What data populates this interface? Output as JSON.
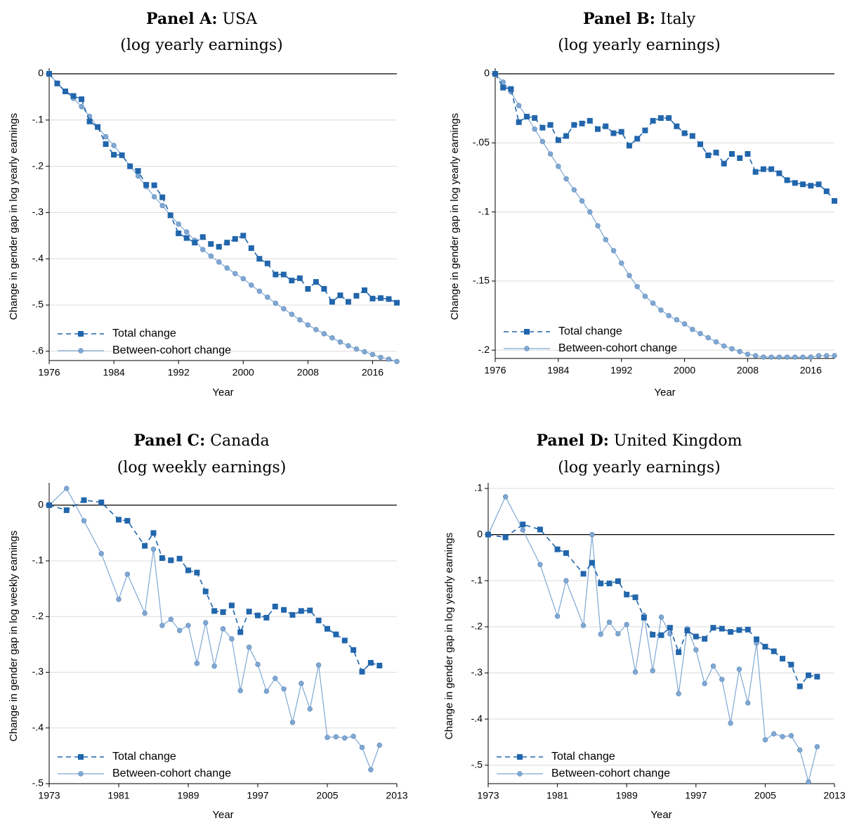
{
  "chart_data": [
    {
      "type": "line",
      "title_bold": "Panel A:",
      "title": "USA",
      "subtitle": "(log yearly earnings)",
      "xlabel": "Year",
      "ylabel": "Change in gender gap in log yearly earnings",
      "xlim": [
        1976,
        2019
      ],
      "ylim": [
        -0.62,
        0
      ],
      "xticks": [
        1976,
        1984,
        1992,
        2000,
        2008,
        2016
      ],
      "yticks": [
        0,
        -0.1,
        -0.2,
        -0.3,
        -0.4,
        -0.5,
        -0.6
      ],
      "ytick_labels": [
        "0",
        "-.1",
        "-.2",
        "-.3",
        "-.4",
        "-.5",
        "-.6"
      ],
      "grid": true,
      "legend_position": "bottom-left",
      "x": [
        1976,
        1977,
        1978,
        1979,
        1980,
        1981,
        1982,
        1983,
        1984,
        1985,
        1986,
        1987,
        1988,
        1989,
        1990,
        1991,
        1992,
        1993,
        1994,
        1995,
        1996,
        1997,
        1998,
        1999,
        2000,
        2001,
        2002,
        2003,
        2004,
        2005,
        2006,
        2007,
        2008,
        2009,
        2010,
        2011,
        2012,
        2013,
        2014,
        2015,
        2016,
        2017,
        2018,
        2019
      ],
      "series": [
        {
          "name": "Total change",
          "style": "dashed-square",
          "color": "#2166ac",
          "values": [
            0,
            -0.021,
            -0.038,
            -0.048,
            -0.055,
            -0.103,
            -0.115,
            -0.152,
            -0.175,
            -0.176,
            -0.2,
            -0.21,
            -0.24,
            -0.241,
            -0.267,
            -0.306,
            -0.345,
            -0.355,
            -0.365,
            -0.353,
            -0.368,
            -0.374,
            -0.365,
            -0.357,
            -0.35,
            -0.377,
            -0.4,
            -0.41,
            -0.434,
            -0.434,
            -0.447,
            -0.442,
            -0.465,
            -0.45,
            -0.465,
            -0.493,
            -0.479,
            -0.493,
            -0.48,
            -0.468,
            -0.486,
            -0.485,
            -0.487,
            -0.495
          ]
        },
        {
          "name": "Between-cohort change",
          "style": "solid-circle",
          "color": "#7fa8d3",
          "values": [
            0,
            -0.02,
            -0.038,
            -0.053,
            -0.071,
            -0.092,
            -0.115,
            -0.136,
            -0.155,
            -0.176,
            -0.199,
            -0.221,
            -0.244,
            -0.266,
            -0.285,
            -0.306,
            -0.325,
            -0.342,
            -0.36,
            -0.38,
            -0.394,
            -0.407,
            -0.42,
            -0.432,
            -0.443,
            -0.457,
            -0.47,
            -0.483,
            -0.496,
            -0.508,
            -0.52,
            -0.532,
            -0.543,
            -0.553,
            -0.562,
            -0.571,
            -0.58,
            -0.588,
            -0.595,
            -0.601,
            -0.607,
            -0.613,
            -0.617,
            -0.622
          ]
        }
      ]
    },
    {
      "type": "line",
      "title_bold": "Panel B:",
      "title": "Italy",
      "subtitle": "(log yearly earnings)",
      "xlabel": "Year",
      "ylabel": "Change in gender gap in log yearly earnings",
      "xlim": [
        1976,
        2019
      ],
      "ylim": [
        -0.206,
        0
      ],
      "xticks": [
        1976,
        1984,
        1992,
        2000,
        2008,
        2016
      ],
      "yticks": [
        0,
        -0.05,
        -0.1,
        -0.15,
        -0.2
      ],
      "ytick_labels": [
        "0",
        "-.05",
        "-.1",
        "-.15",
        "-.2"
      ],
      "grid": true,
      "legend_position": "bottom-left",
      "x": [
        1976,
        1977,
        1978,
        1979,
        1980,
        1981,
        1982,
        1983,
        1984,
        1985,
        1986,
        1987,
        1988,
        1989,
        1990,
        1991,
        1992,
        1993,
        1994,
        1995,
        1996,
        1997,
        1998,
        1999,
        2000,
        2001,
        2002,
        2003,
        2004,
        2005,
        2006,
        2007,
        2008,
        2009,
        2010,
        2011,
        2012,
        2013,
        2014,
        2015,
        2016,
        2017,
        2018,
        2019
      ],
      "series": [
        {
          "name": "Total change",
          "style": "dashed-square",
          "color": "#2166ac",
          "values": [
            0,
            -0.01,
            -0.011,
            -0.035,
            -0.031,
            -0.032,
            -0.039,
            -0.037,
            -0.048,
            -0.045,
            -0.037,
            -0.036,
            -0.034,
            -0.04,
            -0.038,
            -0.043,
            -0.042,
            -0.052,
            -0.047,
            -0.041,
            -0.034,
            -0.032,
            -0.032,
            -0.038,
            -0.043,
            -0.045,
            -0.051,
            -0.059,
            -0.057,
            -0.065,
            -0.058,
            -0.061,
            -0.058,
            -0.071,
            -0.069,
            -0.069,
            -0.072,
            -0.077,
            -0.079,
            -0.08,
            -0.081,
            -0.08,
            -0.085,
            -0.092
          ]
        },
        {
          "name": "Between-cohort change",
          "style": "solid-circle",
          "color": "#7fa8d3",
          "values": [
            0,
            -0.006,
            -0.013,
            -0.023,
            -0.031,
            -0.04,
            -0.049,
            -0.058,
            -0.067,
            -0.076,
            -0.084,
            -0.092,
            -0.1,
            -0.11,
            -0.12,
            -0.128,
            -0.137,
            -0.146,
            -0.154,
            -0.161,
            -0.166,
            -0.171,
            -0.175,
            -0.178,
            -0.181,
            -0.185,
            -0.188,
            -0.191,
            -0.194,
            -0.197,
            -0.199,
            -0.201,
            -0.203,
            -0.204,
            -0.205,
            -0.205,
            -0.205,
            -0.205,
            -0.205,
            -0.205,
            -0.205,
            -0.204,
            -0.204,
            -0.204
          ]
        }
      ]
    },
    {
      "type": "line",
      "title_bold": "Panel C:",
      "title": "Canada",
      "subtitle": "(log weekly earnings)",
      "xlabel": "Year",
      "ylabel": "Change in gender gap in log weekly earnings",
      "xlim": [
        1973,
        2013
      ],
      "ylim": [
        -0.5,
        0.03
      ],
      "xticks": [
        1973,
        1981,
        1989,
        1997,
        2005,
        2013
      ],
      "yticks": [
        0,
        -0.1,
        -0.2,
        -0.3,
        -0.4,
        -0.5
      ],
      "ytick_labels": [
        "0",
        "-.1",
        "-.2",
        "-.3",
        "-.4",
        "-.5"
      ],
      "grid": true,
      "legend_position": "bottom-left",
      "series": [
        {
          "name": "Total change",
          "style": "dashed-square",
          "color": "#2166ac",
          "x": [
            1973,
            1975,
            1977,
            1979,
            1981,
            1982,
            1984,
            1985,
            1986,
            1987,
            1988,
            1989,
            1990,
            1991,
            1992,
            1993,
            1994,
            1995,
            1996,
            1997,
            1998,
            1999,
            2000,
            2001,
            2002,
            2003,
            2004,
            2005,
            2006,
            2007,
            2008,
            2009,
            2010,
            2011
          ],
          "values": [
            0,
            -0.009,
            0.009,
            0.005,
            -0.026,
            -0.028,
            -0.073,
            -0.05,
            -0.095,
            -0.099,
            -0.096,
            -0.117,
            -0.121,
            -0.155,
            -0.19,
            -0.192,
            -0.18,
            -0.228,
            -0.191,
            -0.198,
            -0.202,
            -0.182,
            -0.188,
            -0.197,
            -0.19,
            -0.189,
            -0.207,
            -0.222,
            -0.232,
            -0.243,
            -0.26,
            -0.299,
            -0.283,
            -0.288
          ]
        },
        {
          "name": "Between-cohort change",
          "style": "solid-circle",
          "color": "#7fa8d3",
          "x": [
            1973,
            1975,
            1977,
            1979,
            1981,
            1982,
            1984,
            1985,
            1986,
            1987,
            1988,
            1989,
            1990,
            1991,
            1992,
            1993,
            1994,
            1995,
            1996,
            1997,
            1998,
            1999,
            2000,
            2001,
            2002,
            2003,
            2004,
            2005,
            2006,
            2007,
            2008,
            2009,
            2010,
            2011
          ],
          "values": [
            0,
            0.03,
            -0.028,
            -0.087,
            -0.169,
            -0.124,
            -0.194,
            -0.079,
            -0.216,
            -0.205,
            -0.225,
            -0.216,
            -0.284,
            -0.211,
            -0.289,
            -0.222,
            -0.24,
            -0.333,
            -0.255,
            -0.286,
            -0.334,
            -0.311,
            -0.33,
            -0.39,
            -0.32,
            -0.366,
            -0.287,
            -0.417,
            -0.416,
            -0.418,
            -0.415,
            -0.435,
            -0.475,
            -0.431
          ]
        }
      ]
    },
    {
      "type": "line",
      "title_bold": "Panel D:",
      "title": "United Kingdom",
      "subtitle": "(log yearly earnings)",
      "xlabel": "Year",
      "ylabel": "Change in gender gap in log yearly earnings",
      "xlim": [
        1973,
        2013
      ],
      "ylim": [
        -0.54,
        0.1
      ],
      "xticks": [
        1973,
        1981,
        1989,
        1997,
        2005,
        2013
      ],
      "yticks": [
        0.1,
        0,
        -0.1,
        -0.2,
        -0.3,
        -0.4,
        -0.5
      ],
      "ytick_labels": [
        ".1",
        "0",
        "-.1",
        "-.2",
        "-.3",
        "-.4",
        "-.5"
      ],
      "grid": true,
      "legend_position": "bottom-left",
      "series": [
        {
          "name": "Total change",
          "style": "dashed-square",
          "color": "#2166ac",
          "x": [
            1973,
            1975,
            1977,
            1979,
            1981,
            1982,
            1984,
            1985,
            1986,
            1987,
            1988,
            1989,
            1990,
            1991,
            1992,
            1993,
            1994,
            1995,
            1996,
            1997,
            1998,
            1999,
            2000,
            2001,
            2002,
            2003,
            2004,
            2005,
            2006,
            2007,
            2008,
            2009,
            2010,
            2011
          ],
          "values": [
            0,
            -0.006,
            0.022,
            0.011,
            -0.032,
            -0.04,
            -0.085,
            -0.061,
            -0.106,
            -0.106,
            -0.101,
            -0.13,
            -0.136,
            -0.18,
            -0.217,
            -0.218,
            -0.202,
            -0.255,
            -0.208,
            -0.221,
            -0.226,
            -0.202,
            -0.204,
            -0.211,
            -0.207,
            -0.206,
            -0.227,
            -0.243,
            -0.253,
            -0.269,
            -0.282,
            -0.329,
            -0.305,
            -0.308
          ]
        },
        {
          "name": "Between-cohort change",
          "style": "solid-circle",
          "color": "#7fa8d3",
          "x": [
            1973,
            1975,
            1977,
            1979,
            1981,
            1982,
            1984,
            1985,
            1986,
            1987,
            1988,
            1989,
            1990,
            1991,
            1992,
            1993,
            1994,
            1995,
            1996,
            1997,
            1998,
            1999,
            2000,
            2001,
            2002,
            2003,
            2004,
            2005,
            2006,
            2007,
            2008,
            2009,
            2010,
            2011
          ],
          "values": [
            0,
            0.082,
            0.01,
            -0.065,
            -0.177,
            -0.1,
            -0.197,
            0,
            -0.216,
            -0.19,
            -0.215,
            -0.195,
            -0.298,
            -0.175,
            -0.295,
            -0.179,
            -0.215,
            -0.345,
            -0.204,
            -0.25,
            -0.323,
            -0.285,
            -0.314,
            -0.409,
            -0.292,
            -0.365,
            -0.235,
            -0.445,
            -0.432,
            -0.438,
            -0.436,
            -0.467,
            -0.536,
            -0.46
          ]
        }
      ]
    }
  ]
}
